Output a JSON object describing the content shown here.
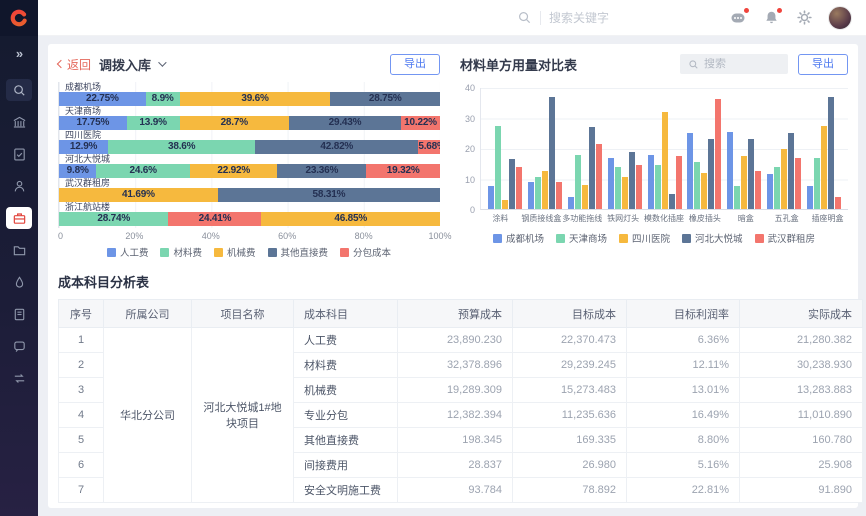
{
  "topbar": {
    "search_placeholder": "搜索关键字",
    "icon_names": [
      "search-icon",
      "message-icon",
      "bell-icon",
      "gear-icon",
      "avatar"
    ]
  },
  "sidebar": {
    "icon_names": [
      "expand-icon",
      "search-icon",
      "bank-icon",
      "document-check-icon",
      "user-icon",
      "briefcase-icon",
      "folder-icon",
      "drop-icon",
      "notebook-icon",
      "chat-icon",
      "workflow-icon"
    ],
    "active_item": "briefcase-icon",
    "accent_color": "#e2463e"
  },
  "stock_panel": {
    "back_label": "返回",
    "title": "调拨入库",
    "export_label": "导出"
  },
  "material_panel": {
    "title": "材料单方用量对比表",
    "search_placeholder": "搜索",
    "export_label": "导出"
  },
  "cost_table": {
    "title": "成本科目分析表",
    "headers": [
      "序号",
      "所属公司",
      "项目名称",
      "成本科目",
      "预算成本",
      "目标成本",
      "目标利润率",
      "实际成本"
    ],
    "company": "华北分公司",
    "project": "河北大悦城1#地块项目",
    "rows": [
      {
        "no": "1",
        "subject": "人工费",
        "budget": "23,890.230",
        "target": "22,370.473",
        "margin": "6.36%",
        "actual": "21,280.382"
      },
      {
        "no": "2",
        "subject": "材料费",
        "budget": "32,378.896",
        "target": "29,239.245",
        "margin": "12.11%",
        "actual": "30,238.930"
      },
      {
        "no": "3",
        "subject": "机械费",
        "budget": "19,289.309",
        "target": "15,273.483",
        "margin": "13.01%",
        "actual": "13,283.883"
      },
      {
        "no": "4",
        "subject": "专业分包",
        "budget": "12,382.394",
        "target": "11,235.636",
        "margin": "16.49%",
        "actual": "11,010.890"
      },
      {
        "no": "5",
        "subject": "其他直接费",
        "budget": "198.345",
        "target": "169.335",
        "margin": "8.80%",
        "actual": "160.780"
      },
      {
        "no": "6",
        "subject": "间接费用",
        "budget": "28.837",
        "target": "26.980",
        "margin": "5.16%",
        "actual": "25.908"
      },
      {
        "no": "7",
        "subject": "安全文明施工费",
        "budget": "93.784",
        "target": "78.892",
        "margin": "22.81%",
        "actual": "91.890"
      }
    ]
  },
  "chart_data": [
    {
      "type": "bar",
      "variant": "horizontal-stacked",
      "title": "调拨入库",
      "categories": [
        "成都机场",
        "天津商场",
        "四川医院",
        "河北大悦城",
        "武汉群租房",
        "浙江航站楼"
      ],
      "legend": [
        "人工费",
        "材料费",
        "机械费",
        "其他直接费",
        "分包成本"
      ],
      "colors": {
        "人工费": "#6d95e6",
        "材料费": "#7bd6b0",
        "机械费": "#f6b93e",
        "其他直接费": "#5c7596",
        "分包成本": "#f3756d"
      },
      "x_ticks": [
        "0",
        "20%",
        "40%",
        "60%",
        "80%",
        "100%"
      ],
      "xlim": [
        0,
        100
      ],
      "rows": [
        [
          {
            "series": "人工费",
            "value": 22.75
          },
          {
            "series": "材料费",
            "value": 8.9
          },
          {
            "series": "机械费",
            "value": 39.6
          },
          {
            "series": "其他直接费",
            "value": 28.75
          }
        ],
        [
          {
            "series": "人工费",
            "value": 17.75
          },
          {
            "series": "材料费",
            "value": 13.9
          },
          {
            "series": "机械费",
            "value": 28.7
          },
          {
            "series": "其他直接费",
            "value": 29.43
          },
          {
            "series": "分包成本",
            "value": 10.22
          }
        ],
        [
          {
            "series": "人工费",
            "value": 12.9
          },
          {
            "series": "材料费",
            "value": 38.6
          },
          {
            "series": "其他直接费",
            "value": 42.82
          },
          {
            "series": "分包成本",
            "value": 5.68
          }
        ],
        [
          {
            "series": "人工费",
            "value": 9.8
          },
          {
            "series": "材料费",
            "value": 24.6
          },
          {
            "series": "机械费",
            "value": 22.92
          },
          {
            "series": "其他直接费",
            "value": 23.36
          },
          {
            "series": "分包成本",
            "value": 19.32
          }
        ],
        [
          {
            "series": "机械费",
            "value": 41.69
          },
          {
            "series": "其他直接费",
            "value": 58.31
          }
        ],
        [
          {
            "series": "材料费",
            "value": 28.74
          },
          {
            "series": "分包成本",
            "value": 24.41
          },
          {
            "series": "机械费",
            "value": 46.85
          }
        ]
      ]
    },
    {
      "type": "bar",
      "variant": "vertical-grouped",
      "title": "材料单方用量对比表",
      "categories": [
        "涂料",
        "钢质接线盒",
        "多功能拖线",
        "铁网灯头",
        "模数化插座",
        "橡皮插头",
        "暗盒",
        "五孔盒",
        "插座明盒"
      ],
      "y_ticks": [
        0,
        10,
        20,
        30,
        40
      ],
      "ylim": [
        0,
        40
      ],
      "grid": true,
      "legend_position": "bottom",
      "series": [
        {
          "name": "成都机场",
          "color": "#6d95e6",
          "values": [
            7.5,
            9,
            4,
            17,
            18,
            25,
            25.5,
            11.5,
            7.5
          ]
        },
        {
          "name": "天津商场",
          "color": "#7bd6b0",
          "values": [
            27.5,
            10.5,
            18,
            14,
            14.5,
            15.5,
            7.5,
            14,
            17
          ]
        },
        {
          "name": "四川医院",
          "color": "#f6b93e",
          "values": [
            3,
            12.5,
            8,
            10.5,
            32,
            12,
            17.5,
            20,
            27.5
          ]
        },
        {
          "name": "河北大悦城",
          "color": "#5c7596",
          "values": [
            16.5,
            37,
            27,
            19,
            5,
            23,
            23,
            25,
            37
          ]
        },
        {
          "name": "武汉群租房",
          "color": "#f3756d",
          "values": [
            14,
            9,
            21.5,
            14.5,
            17.5,
            36.5,
            12.5,
            17,
            4
          ]
        }
      ]
    }
  ]
}
